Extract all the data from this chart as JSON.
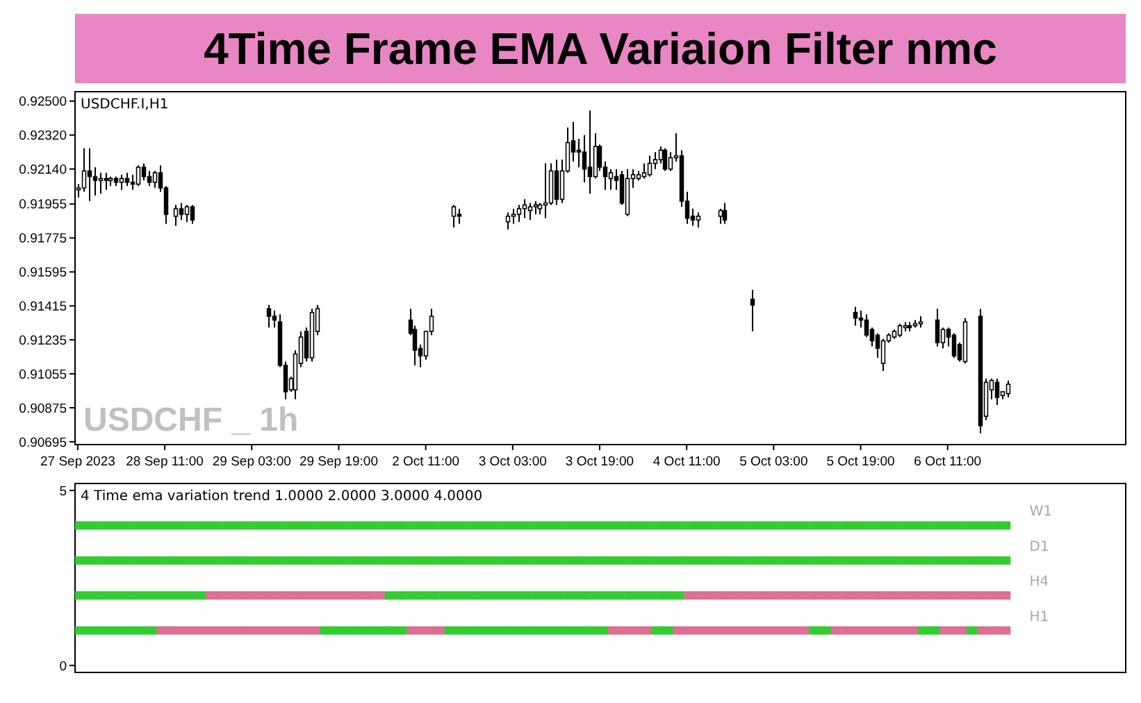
{
  "chart_data": [
    {
      "type": "candlestick",
      "title": "4Time Frame EMA Variaion Filter nmc",
      "subtitle": "USDCHF.I,H1",
      "annotations": [
        "USDCHF _ 1h"
      ],
      "categories": [
        "27 Sep 2023",
        null,
        null,
        null,
        null,
        null,
        null,
        null,
        null,
        null,
        null,
        null,
        null,
        null,
        null,
        null,
        "28 Sep 11:00",
        null,
        null,
        null,
        null,
        null,
        null,
        null,
        null,
        null,
        null,
        null,
        null,
        null,
        null,
        null,
        "29 Sep 03:00",
        null,
        null,
        null,
        null,
        null,
        null,
        null,
        null,
        null,
        null,
        null,
        null,
        null,
        null,
        null,
        "29 Sep 19:00",
        null,
        null,
        null,
        null,
        null,
        null,
        null,
        null,
        null,
        null,
        null,
        null,
        null,
        null,
        null,
        "2 Oct 11:00",
        null,
        null,
        null,
        null,
        null,
        null,
        null,
        null,
        null,
        null,
        null,
        null,
        null,
        null,
        null,
        "3 Oct 03:00",
        null,
        null,
        null,
        null,
        null,
        null,
        null,
        null,
        null,
        null,
        null,
        null,
        null,
        null,
        null,
        "3 Oct 19:00",
        null,
        null,
        null,
        null,
        null,
        null,
        null,
        null,
        null,
        null,
        null,
        null,
        null,
        null,
        null,
        "4 Oct 11:00",
        null,
        null,
        null,
        null,
        null,
        null,
        null,
        null,
        null,
        null,
        null,
        null,
        null,
        null,
        null,
        "5 Oct 03:00",
        null,
        null,
        null,
        null,
        null,
        null,
        null,
        null,
        null,
        null,
        null,
        null,
        null,
        null,
        null,
        "5 Oct 19:00",
        null,
        null,
        null,
        null,
        null,
        null,
        null,
        null,
        null,
        null,
        null,
        null,
        null,
        null,
        null,
        "6 Oct 11:00",
        null,
        null,
        null,
        null,
        null,
        null,
        null,
        null,
        null,
        null,
        null
      ],
      "ohlc": [
        [
          0.9203,
          0.9206,
          0.9199,
          0.9204
        ],
        [
          0.9204,
          0.9225,
          0.9202,
          0.9213
        ],
        [
          0.9213,
          0.9225,
          0.9197,
          0.921
        ],
        [
          0.921,
          0.9215,
          0.92,
          0.9208
        ],
        [
          0.9208,
          0.9212,
          0.9201,
          0.9209
        ],
        [
          0.9209,
          0.9212,
          0.9203,
          0.9208
        ],
        [
          0.9208,
          0.921,
          0.9205,
          0.9209
        ],
        [
          0.9209,
          0.921,
          0.9205,
          0.9207
        ],
        [
          0.9207,
          0.9211,
          0.9203,
          0.9209
        ],
        [
          0.9209,
          0.9212,
          0.9205,
          0.9207
        ],
        [
          0.9207,
          0.9211,
          0.9203,
          0.9206
        ],
        [
          0.9206,
          0.9216,
          0.9205,
          0.9215
        ],
        [
          0.9215,
          0.9217,
          0.9208,
          0.921
        ],
        [
          0.921,
          0.9213,
          0.9205,
          0.9207
        ],
        [
          0.9207,
          0.9213,
          0.9204,
          0.9212
        ],
        [
          0.9212,
          0.9216,
          0.9202,
          0.9204
        ],
        [
          0.9204,
          0.9205,
          0.9185,
          0.919
        ],
        null,
        [
          0.9189,
          0.9195,
          0.9184,
          0.9193
        ],
        [
          0.9193,
          0.9196,
          0.9187,
          0.919
        ],
        [
          0.919,
          0.9195,
          0.9186,
          0.9194
        ],
        [
          0.9194,
          0.9195,
          0.9185,
          0.9187
        ],
        null,
        null,
        null,
        null,
        null,
        null,
        null,
        null,
        null,
        null,
        null,
        null,
        null,
        [
          0.914,
          0.9142,
          0.913,
          0.9136
        ],
        [
          0.9136,
          0.9139,
          0.913,
          0.9134
        ],
        [
          0.9133,
          0.9137,
          0.9109,
          0.911
        ],
        [
          0.911,
          0.9112,
          0.9092,
          0.9096
        ],
        [
          0.9097,
          0.9104,
          0.9096,
          0.9103
        ],
        [
          0.9097,
          0.9118,
          0.9092,
          0.9116
        ],
        [
          0.9111,
          0.9128,
          0.9109,
          0.9125
        ],
        [
          0.9128,
          0.913,
          0.9112,
          0.9114
        ],
        [
          0.9114,
          0.914,
          0.9112,
          0.9138
        ],
        [
          0.9128,
          0.9142,
          0.9126,
          0.914
        ],
        null,
        null,
        null,
        null,
        null,
        null,
        null,
        null,
        null,
        null,
        null,
        null,
        null,
        null,
        null,
        null,
        [
          0.9134,
          0.914,
          0.9126,
          0.9127
        ],
        [
          0.9129,
          0.9131,
          0.911,
          0.9118
        ],
        [
          0.9119,
          0.9121,
          0.9109,
          0.9115
        ],
        [
          0.9115,
          0.9128,
          0.9113,
          0.9128
        ],
        [
          0.9128,
          0.914,
          0.9126,
          0.9136
        ],
        null,
        null,
        null,
        [
          0.9189,
          0.9195,
          0.9183,
          0.9194
        ],
        [
          0.919,
          0.9193,
          0.9185,
          0.9189
        ],
        null,
        null,
        null,
        null,
        null,
        null,
        null,
        null,
        [
          0.9186,
          0.9191,
          0.9182,
          0.9189
        ],
        [
          0.9189,
          0.9193,
          0.9185,
          0.919
        ],
        [
          0.919,
          0.9195,
          0.9186,
          0.9193
        ],
        [
          0.9193,
          0.9198,
          0.9188,
          0.9195
        ],
        [
          0.9192,
          0.9196,
          0.9187,
          0.9194
        ],
        [
          0.9194,
          0.9197,
          0.919,
          0.9195
        ],
        [
          0.9193,
          0.9196,
          0.919,
          0.9195
        ],
        [
          0.9195,
          0.9217,
          0.9188,
          0.9196
        ],
        [
          0.9196,
          0.9217,
          0.9195,
          0.9213
        ],
        [
          0.9213,
          0.9219,
          0.9195,
          0.9198
        ],
        [
          0.9198,
          0.9219,
          0.9196,
          0.9213
        ],
        [
          0.9213,
          0.9236,
          0.9212,
          0.9228
        ],
        [
          0.9229,
          0.9239,
          0.9218,
          0.9223
        ],
        [
          0.9224,
          0.923,
          0.9215,
          0.9223
        ],
        [
          0.9223,
          0.9232,
          0.9207,
          0.9214
        ],
        [
          0.9215,
          0.9245,
          0.9201,
          0.921
        ],
        [
          0.921,
          0.9233,
          0.9209,
          0.9226
        ],
        [
          0.9226,
          0.9227,
          0.9213,
          0.9215
        ],
        [
          0.9215,
          0.9218,
          0.9203,
          0.921
        ],
        [
          0.9209,
          0.9214,
          0.9203,
          0.9212
        ],
        [
          0.921,
          0.9214,
          0.9203,
          0.9208
        ],
        [
          0.9211,
          0.9213,
          0.9195,
          0.9196
        ],
        [
          0.919,
          0.9214,
          0.9189,
          0.9209
        ],
        [
          0.9209,
          0.9214,
          0.9204,
          0.9211
        ],
        [
          0.9209,
          0.9213,
          0.9208,
          0.9211
        ],
        [
          0.921,
          0.9217,
          0.9209,
          0.9212
        ],
        [
          0.9211,
          0.9221,
          0.921,
          0.9217
        ],
        [
          0.9217,
          0.9223,
          0.9214,
          0.9219
        ],
        [
          0.9219,
          0.9226,
          0.9217,
          0.9224
        ],
        [
          0.9224,
          0.9225,
          0.9213,
          0.9214
        ],
        [
          0.9214,
          0.9223,
          0.9213,
          0.922
        ],
        [
          0.922,
          0.9233,
          0.9218,
          0.9221
        ],
        [
          0.9221,
          0.9224,
          0.9194,
          0.9197
        ],
        [
          0.9197,
          0.9202,
          0.9185,
          0.9188
        ],
        [
          0.9189,
          0.9193,
          0.9184,
          0.9187
        ],
        [
          0.9187,
          0.9191,
          0.9183,
          0.9189
        ],
        null,
        null,
        null,
        [
          0.9189,
          0.9193,
          0.9185,
          0.9192
        ],
        [
          0.9192,
          0.9196,
          0.9185,
          0.9187
        ],
        null,
        null,
        null,
        null,
        [
          0.9145,
          0.915,
          0.9128,
          0.9142
        ],
        null,
        null,
        null,
        null,
        null,
        null,
        null,
        null,
        null,
        null,
        null,
        null,
        null,
        null,
        null,
        null,
        null,
        null,
        [
          0.9138,
          0.9141,
          0.9131,
          0.9135
        ],
        [
          0.9135,
          0.9139,
          0.913,
          0.9134
        ],
        [
          0.9134,
          0.9137,
          0.9125,
          0.9126
        ],
        [
          0.9129,
          0.913,
          0.912,
          0.9123
        ],
        [
          0.9126,
          0.9127,
          0.9114,
          0.9119
        ],
        [
          0.9111,
          0.9124,
          0.9107,
          0.9123
        ],
        [
          0.9123,
          0.9127,
          0.9122,
          0.9126
        ],
        [
          0.9125,
          0.9129,
          0.9124,
          0.9128
        ],
        [
          0.9126,
          0.9132,
          0.9125,
          0.9131
        ],
        [
          0.913,
          0.9133,
          0.9128,
          0.9131
        ],
        [
          0.9131,
          0.9133,
          0.9128,
          0.913
        ],
        [
          0.9131,
          0.9134,
          0.913,
          0.9132
        ],
        [
          0.9132,
          0.9136,
          0.913,
          0.9133
        ],
        null,
        null,
        [
          0.9134,
          0.914,
          0.912,
          0.9122
        ],
        [
          0.9122,
          0.913,
          0.9119,
          0.9129
        ],
        [
          0.9129,
          0.913,
          0.912,
          0.9125
        ],
        [
          0.9126,
          0.9127,
          0.9114,
          0.9115
        ],
        [
          0.9121,
          0.9122,
          0.9112,
          0.9113
        ],
        [
          0.9112,
          0.9135,
          0.9111,
          0.9133
        ],
        null,
        null,
        [
          0.9136,
          0.914,
          0.9074,
          0.9078
        ],
        [
          0.9083,
          0.9103,
          0.9081,
          0.9101
        ],
        [
          0.9097,
          0.9103,
          0.9092,
          0.9102
        ],
        [
          0.9101,
          0.9103,
          0.9089,
          0.9093
        ],
        [
          0.9094,
          0.9096,
          0.9092,
          0.9096
        ],
        [
          0.9095,
          0.9102,
          0.9093,
          0.91
        ]
      ],
      "ylim": [
        0.9068,
        0.9255
      ],
      "yticks": [
        {
          "value": 0.925,
          "label": "0.92500"
        },
        {
          "value": 0.9232,
          "label": "0.92320"
        },
        {
          "value": 0.9214,
          "label": "0.92140"
        },
        {
          "value": 0.91955,
          "label": "0.91955"
        },
        {
          "value": 0.91775,
          "label": "0.91775"
        },
        {
          "value": 0.91595,
          "label": "0.91595"
        },
        {
          "value": 0.91415,
          "label": "0.91415"
        },
        {
          "value": 0.91235,
          "label": "0.91235"
        },
        {
          "value": 0.91055,
          "label": "0.91055"
        },
        {
          "value": 0.90875,
          "label": "0.90875"
        },
        {
          "value": 0.90695,
          "label": "0.90695"
        }
      ]
    },
    {
      "type": "scatter",
      "marker": "square",
      "title": "4 Time ema variation trend 1.0000 2.0000 3.0000 4.0000",
      "categories": [
        null,
        null,
        null,
        null,
        null,
        null,
        null,
        null,
        null,
        null,
        null,
        null,
        null,
        null,
        null,
        null,
        null,
        null,
        null,
        null,
        null,
        null,
        null,
        null,
        null,
        null,
        null,
        null,
        null,
        null,
        null,
        null,
        null,
        null,
        null,
        null,
        null,
        null,
        null,
        null,
        null,
        null,
        null,
        null,
        null,
        null,
        null,
        null,
        null,
        null,
        null,
        null,
        null,
        null,
        null,
        null,
        null,
        null,
        null,
        null,
        null,
        null,
        null,
        null,
        null,
        null,
        null,
        null,
        null,
        null,
        null,
        null,
        null,
        null,
        null,
        null,
        null,
        null,
        null,
        null,
        null,
        null,
        null,
        null,
        null,
        null,
        null,
        null,
        null,
        null,
        null,
        null,
        null,
        null,
        null,
        null,
        null,
        null,
        null,
        null,
        null,
        null,
        null,
        null,
        null,
        null,
        null,
        null,
        null,
        null,
        null,
        null,
        null,
        null,
        null,
        null,
        null,
        null,
        null,
        null,
        null,
        null,
        null,
        null,
        null,
        null,
        null,
        null,
        null,
        null,
        null,
        null,
        null,
        null,
        null,
        null,
        null,
        null,
        null,
        null,
        null,
        null,
        null,
        null,
        null,
        null,
        null,
        null,
        null,
        null,
        null,
        null,
        null,
        null,
        null,
        null,
        null,
        null,
        null,
        null,
        null,
        null,
        null,
        null,
        null,
        null,
        null,
        null,
        null,
        null,
        null,
        null
      ],
      "ylim": [
        -0.2,
        5.2
      ],
      "yticks": [
        {
          "value": 0,
          "label": "0"
        },
        {
          "value": 5,
          "label": "5"
        }
      ],
      "annotations": [
        "W1",
        "D1",
        "H4",
        "H1"
      ],
      "series": [
        {
          "color": "#32cd32",
          "values": [
            4,
            4,
            4,
            4,
            4,
            4,
            4,
            4,
            4,
            4,
            4,
            4,
            4,
            4,
            4,
            4,
            4,
            4,
            4,
            4,
            4,
            4,
            4,
            4,
            4,
            4,
            4,
            4,
            4,
            4,
            4,
            4,
            4,
            4,
            4,
            4,
            4,
            4,
            4,
            4,
            4,
            4,
            4,
            4,
            4,
            4,
            4,
            4,
            4,
            4,
            4,
            4,
            4,
            4,
            4,
            4,
            4,
            4,
            4,
            4,
            4,
            4,
            4,
            4,
            4,
            4,
            4,
            4,
            4,
            4,
            4,
            4,
            4,
            4,
            4,
            4,
            4,
            4,
            4,
            4,
            4,
            4,
            4,
            4,
            4,
            4,
            4,
            4,
            4,
            4,
            4,
            4,
            4,
            4,
            4,
            4,
            4,
            4,
            4,
            4,
            4,
            4,
            4,
            4,
            4,
            4,
            4,
            4,
            4,
            4,
            4,
            4,
            4,
            4,
            4,
            4,
            4,
            4,
            4,
            4,
            4,
            4,
            4,
            4,
            4,
            4,
            4,
            4,
            4,
            4,
            4,
            4,
            4,
            4,
            4,
            4,
            4,
            4,
            4,
            4,
            4,
            4,
            4,
            4,
            4,
            4,
            4,
            4,
            4,
            4,
            4,
            4,
            4,
            4,
            4,
            4,
            4,
            4,
            4,
            4,
            4,
            4,
            4,
            4,
            4,
            4,
            4,
            4,
            4,
            4,
            4,
            4
          ]
        },
        {
          "color": "#32cd32",
          "values": [
            3,
            3,
            3,
            3,
            3,
            3,
            3,
            3,
            3,
            3,
            3,
            3,
            3,
            3,
            3,
            3,
            3,
            3,
            3,
            3,
            3,
            3,
            3,
            3,
            3,
            3,
            3,
            3,
            3,
            3,
            3,
            3,
            3,
            3,
            3,
            3,
            3,
            3,
            3,
            3,
            3,
            3,
            3,
            3,
            3,
            3,
            3,
            3,
            3,
            3,
            3,
            3,
            3,
            3,
            3,
            3,
            3,
            3,
            3,
            3,
            3,
            3,
            3,
            3,
            3,
            3,
            3,
            3,
            3,
            3,
            3,
            3,
            3,
            3,
            3,
            3,
            3,
            3,
            3,
            3,
            3,
            3,
            3,
            3,
            3,
            3,
            3,
            3,
            3,
            3,
            3,
            3,
            3,
            3,
            3,
            3,
            3,
            3,
            3,
            3,
            3,
            3,
            3,
            3,
            3,
            3,
            3,
            3,
            3,
            3,
            3,
            3,
            3,
            3,
            3,
            3,
            3,
            3,
            3,
            3,
            3,
            3,
            3,
            3,
            3,
            3,
            3,
            3,
            3,
            3,
            3,
            3,
            3,
            3,
            3,
            3,
            3,
            3,
            3,
            3,
            3,
            3,
            3,
            3,
            3,
            3,
            3,
            3,
            3,
            3,
            3,
            3,
            3,
            3,
            3,
            3,
            3,
            3,
            3,
            3,
            3,
            3,
            3,
            3,
            3,
            3,
            3,
            3,
            3,
            3,
            3,
            3
          ]
        },
        {
          "values": [
            2,
            2,
            2,
            2,
            2,
            2,
            2,
            2,
            2,
            2,
            2,
            2,
            2,
            2,
            2,
            2,
            2,
            2,
            2,
            2,
            2,
            2,
            2,
            2,
            2,
            2,
            2,
            2,
            2,
            2,
            2,
            2,
            2,
            2,
            2,
            2,
            2,
            2,
            2,
            2,
            2,
            2,
            2,
            2,
            2,
            2,
            2,
            2,
            2,
            2,
            2,
            2,
            2,
            2,
            2,
            2,
            2,
            2,
            2,
            2,
            2,
            2,
            2,
            2,
            2,
            2,
            2,
            2,
            2,
            2,
            2,
            2,
            2,
            2,
            2,
            2,
            2,
            2,
            2,
            2,
            2,
            2,
            2,
            2,
            2,
            2,
            2,
            2,
            2,
            2,
            2,
            2,
            2,
            2,
            2,
            2,
            2,
            2,
            2,
            2,
            2,
            2,
            2,
            2,
            2,
            2,
            2,
            2,
            2,
            2,
            2,
            2,
            2,
            2,
            2,
            2,
            2,
            2,
            2,
            2,
            2,
            2,
            2,
            2,
            2,
            2,
            2,
            2,
            2,
            2,
            2,
            2,
            2,
            2,
            2,
            2,
            2,
            2,
            2,
            2,
            2,
            2,
            2,
            2,
            2,
            2,
            2,
            2,
            2,
            2,
            2,
            2,
            2,
            2,
            2,
            2,
            2,
            2,
            2,
            2,
            2,
            2,
            2,
            2,
            2,
            2,
            2,
            2,
            2,
            2,
            2,
            2
          ],
          "colors": [
            "#32cd32",
            "#32cd32",
            "#32cd32",
            "#32cd32",
            "#32cd32",
            "#32cd32",
            "#32cd32",
            "#32cd32",
            "#32cd32",
            "#32cd32",
            "#32cd32",
            "#32cd32",
            "#32cd32",
            "#32cd32",
            "#32cd32",
            "#32cd32",
            "#32cd32",
            "#32cd32",
            "#32cd32",
            "#32cd32",
            "#32cd32",
            "#32cd32",
            "#32cd32",
            "#32cd32",
            "#db7093",
            "#db7093",
            "#db7093",
            "#db7093",
            "#db7093",
            "#db7093",
            "#db7093",
            "#db7093",
            "#db7093",
            "#db7093",
            "#db7093",
            "#db7093",
            "#db7093",
            "#db7093",
            "#db7093",
            "#db7093",
            "#db7093",
            "#db7093",
            "#db7093",
            "#db7093",
            "#db7093",
            "#db7093",
            "#db7093",
            "#db7093",
            "#db7093",
            "#db7093",
            "#db7093",
            "#db7093",
            "#db7093",
            "#db7093",
            "#db7093",
            "#db7093",
            "#db7093",
            "#32cd32",
            "#32cd32",
            "#32cd32",
            "#32cd32",
            "#32cd32",
            "#32cd32",
            "#32cd32",
            "#32cd32",
            "#32cd32",
            "#32cd32",
            "#32cd32",
            "#32cd32",
            "#32cd32",
            "#32cd32",
            "#32cd32",
            "#32cd32",
            "#32cd32",
            "#32cd32",
            "#32cd32",
            "#32cd32",
            "#32cd32",
            "#32cd32",
            "#32cd32",
            "#32cd32",
            "#32cd32",
            "#32cd32",
            "#32cd32",
            "#32cd32",
            "#32cd32",
            "#32cd32",
            "#32cd32",
            "#32cd32",
            "#32cd32",
            "#32cd32",
            "#32cd32",
            "#32cd32",
            "#32cd32",
            "#32cd32",
            "#32cd32",
            "#32cd32",
            "#32cd32",
            "#32cd32",
            "#32cd32",
            "#32cd32",
            "#32cd32",
            "#32cd32",
            "#32cd32",
            "#32cd32",
            "#32cd32",
            "#32cd32",
            "#32cd32",
            "#32cd32",
            "#32cd32",
            "#32cd32",
            "#32cd32",
            "#db7093",
            "#db7093",
            "#db7093",
            "#db7093",
            "#db7093",
            "#db7093",
            "#db7093",
            "#db7093",
            "#db7093",
            "#db7093",
            "#db7093",
            "#db7093",
            "#db7093",
            "#db7093",
            "#db7093",
            "#db7093",
            "#db7093",
            "#db7093",
            "#db7093",
            "#db7093",
            "#db7093",
            "#db7093",
            "#db7093",
            "#db7093",
            "#db7093",
            "#db7093",
            "#db7093",
            "#db7093",
            "#db7093",
            "#db7093",
            "#db7093",
            "#db7093",
            "#db7093",
            "#db7093",
            "#db7093",
            "#db7093",
            "#db7093",
            "#db7093",
            "#db7093",
            "#db7093",
            "#db7093",
            "#db7093",
            "#db7093",
            "#db7093",
            "#db7093",
            "#db7093",
            "#db7093",
            "#db7093",
            "#db7093",
            "#db7093",
            "#db7093",
            "#db7093",
            "#db7093",
            "#db7093",
            "#db7093",
            "#db7093",
            "#db7093",
            "#db7093",
            "#db7093",
            "#db7093"
          ]
        },
        {
          "values": [
            1,
            1,
            1,
            1,
            1,
            1,
            1,
            1,
            1,
            1,
            1,
            1,
            1,
            1,
            1,
            1,
            1,
            1,
            1,
            1,
            1,
            1,
            1,
            1,
            1,
            1,
            1,
            1,
            1,
            1,
            1,
            1,
            1,
            1,
            1,
            1,
            1,
            1,
            1,
            1,
            1,
            1,
            1,
            1,
            1,
            1,
            1,
            1,
            1,
            1,
            1,
            1,
            1,
            1,
            1,
            1,
            1,
            1,
            1,
            1,
            1,
            1,
            1,
            1,
            1,
            1,
            1,
            1,
            1,
            1,
            1,
            1,
            1,
            1,
            1,
            1,
            1,
            1,
            1,
            1,
            1,
            1,
            1,
            1,
            1,
            1,
            1,
            1,
            1,
            1,
            1,
            1,
            1,
            1,
            1,
            1,
            1,
            1,
            1,
            1,
            1,
            1,
            1,
            1,
            1,
            1,
            1,
            1,
            1,
            1,
            1,
            1,
            1,
            1,
            1,
            1,
            1,
            1,
            1,
            1,
            1,
            1,
            1,
            1,
            1,
            1,
            1,
            1,
            1,
            1,
            1,
            1,
            1,
            1,
            1,
            1,
            1,
            1,
            1,
            1,
            1,
            1,
            1,
            1,
            1,
            1,
            1,
            1,
            1,
            1,
            1,
            1,
            1,
            1,
            1,
            1,
            1,
            1,
            1,
            1,
            1,
            1,
            1,
            1,
            1,
            1,
            1,
            1,
            1,
            1,
            1,
            1
          ],
          "colors": [
            "#32cd32",
            "#32cd32",
            "#32cd32",
            "#32cd32",
            "#32cd32",
            "#32cd32",
            "#32cd32",
            "#32cd32",
            "#32cd32",
            "#32cd32",
            "#32cd32",
            "#32cd32",
            "#32cd32",
            "#32cd32",
            "#32cd32",
            "#db7093",
            "#db7093",
            "#db7093",
            "#db7093",
            "#db7093",
            "#db7093",
            "#db7093",
            "#db7093",
            "#db7093",
            "#db7093",
            "#db7093",
            "#db7093",
            "#db7093",
            "#db7093",
            "#db7093",
            "#db7093",
            "#db7093",
            "#db7093",
            "#db7093",
            "#db7093",
            "#db7093",
            "#db7093",
            "#db7093",
            "#db7093",
            "#db7093",
            "#db7093",
            "#db7093",
            "#db7093",
            "#db7093",
            "#db7093",
            "#32cd32",
            "#32cd32",
            "#32cd32",
            "#32cd32",
            "#32cd32",
            "#32cd32",
            "#32cd32",
            "#32cd32",
            "#32cd32",
            "#32cd32",
            "#32cd32",
            "#32cd32",
            "#32cd32",
            "#32cd32",
            "#32cd32",
            "#32cd32",
            "#db7093",
            "#db7093",
            "#db7093",
            "#db7093",
            "#db7093",
            "#db7093",
            "#db7093",
            "#32cd32",
            "#32cd32",
            "#32cd32",
            "#32cd32",
            "#32cd32",
            "#32cd32",
            "#32cd32",
            "#32cd32",
            "#32cd32",
            "#32cd32",
            "#32cd32",
            "#32cd32",
            "#32cd32",
            "#32cd32",
            "#32cd32",
            "#32cd32",
            "#32cd32",
            "#32cd32",
            "#32cd32",
            "#32cd32",
            "#32cd32",
            "#32cd32",
            "#32cd32",
            "#32cd32",
            "#32cd32",
            "#32cd32",
            "#32cd32",
            "#32cd32",
            "#32cd32",
            "#32cd32",
            "#db7093",
            "#db7093",
            "#db7093",
            "#db7093",
            "#db7093",
            "#db7093",
            "#db7093",
            "#db7093",
            "#32cd32",
            "#32cd32",
            "#32cd32",
            "#32cd32",
            "#db7093",
            "#db7093",
            "#db7093",
            "#db7093",
            "#db7093",
            "#db7093",
            "#db7093",
            "#db7093",
            "#db7093",
            "#db7093",
            "#db7093",
            "#db7093",
            "#db7093",
            "#db7093",
            "#db7093",
            "#db7093",
            "#db7093",
            "#db7093",
            "#db7093",
            "#db7093",
            "#db7093",
            "#db7093",
            "#db7093",
            "#db7093",
            "#db7093",
            "#32cd32",
            "#32cd32",
            "#32cd32",
            "#32cd32",
            "#db7093",
            "#db7093",
            "#db7093",
            "#db7093",
            "#db7093",
            "#db7093",
            "#db7093",
            "#db7093",
            "#db7093",
            "#db7093",
            "#db7093",
            "#db7093",
            "#db7093",
            "#db7093",
            "#db7093",
            "#db7093",
            "#32cd32",
            "#32cd32",
            "#32cd32",
            "#32cd32",
            "#db7093",
            "#db7093",
            "#db7093",
            "#db7093",
            "#db7093",
            "#32cd32",
            "#32cd32",
            "#db7093",
            "#db7093",
            "#db7093",
            "#db7093",
            "#db7093",
            "#db7093"
          ]
        }
      ]
    }
  ]
}
